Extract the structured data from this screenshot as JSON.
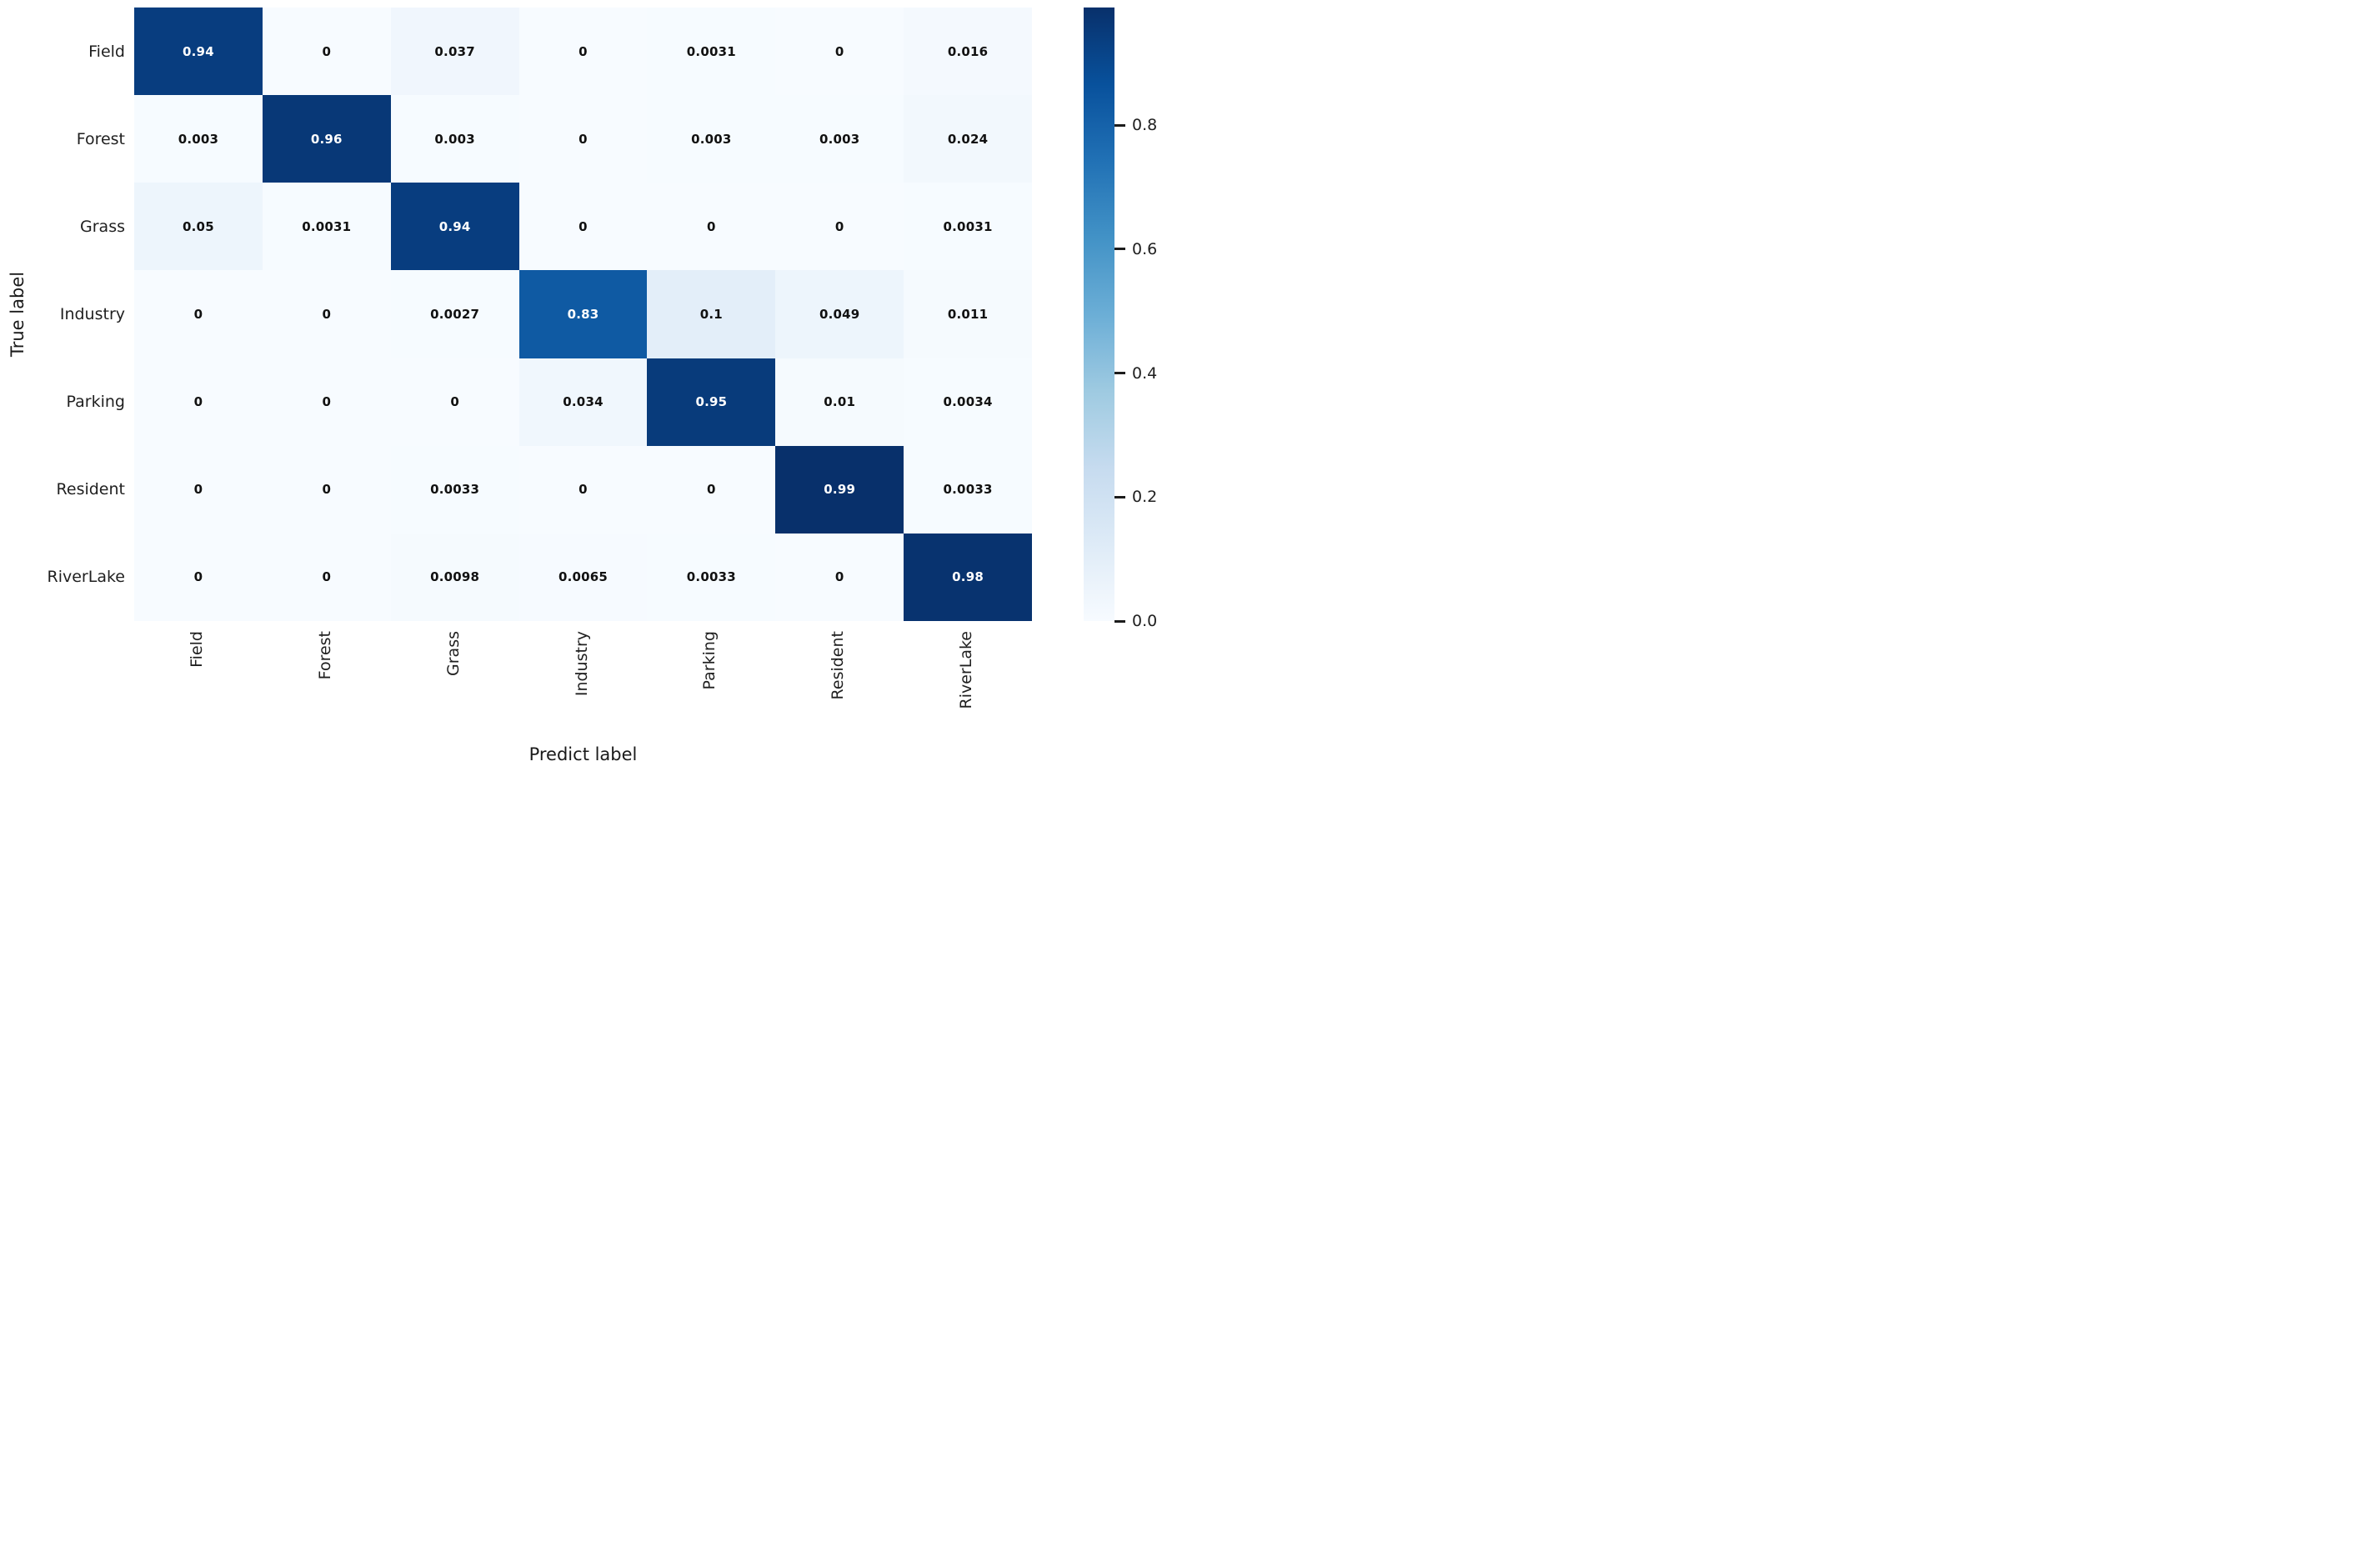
{
  "chart_data": {
    "type": "heatmap",
    "title": "",
    "xlabel": "Predict label",
    "ylabel": "True label",
    "x_tick_labels": [
      "Field",
      "Forest",
      "Grass",
      "Industry",
      "Parking",
      "Resident",
      "RiverLake"
    ],
    "y_tick_labels": [
      "Field",
      "Forest",
      "Grass",
      "Industry",
      "Parking",
      "Resident",
      "RiverLake"
    ],
    "matrix": [
      [
        0.94,
        0,
        0.037,
        0,
        0.0031,
        0,
        0.016
      ],
      [
        0.003,
        0.96,
        0.003,
        0,
        0.003,
        0.003,
        0.024
      ],
      [
        0.05,
        0.0031,
        0.94,
        0,
        0,
        0,
        0.0031
      ],
      [
        0,
        0,
        0.0027,
        0.83,
        0.1,
        0.049,
        0.011
      ],
      [
        0,
        0,
        0,
        0.034,
        0.95,
        0.01,
        0.0034
      ],
      [
        0,
        0,
        0.0033,
        0,
        0,
        0.99,
        0.0033
      ],
      [
        0,
        0,
        0.0098,
        0.0065,
        0.0033,
        0,
        0.98
      ]
    ],
    "colormap": "Blues",
    "vmin": 0.0,
    "vmax": 0.99,
    "grid": false,
    "legend": "none",
    "colorbar": {
      "position": "right",
      "tick_labels": [
        "0.8",
        "0.6",
        "0.4",
        "0.2",
        "0.0"
      ],
      "tick_values": [
        0.8,
        0.6,
        0.4,
        0.2,
        0.0
      ]
    }
  },
  "colors": {
    "cmap_darkest": "#08306b",
    "cmap_lightest": "#f7fbff",
    "annotation_text_dark": "#111111",
    "annotation_text_light": "#ffffff",
    "background": "#ffffff"
  }
}
